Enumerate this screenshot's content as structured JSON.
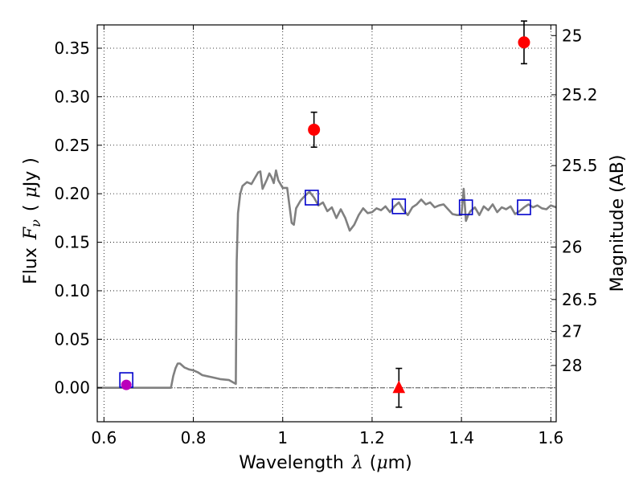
{
  "chart_data": {
    "type": "scatter",
    "xlim": [
      0.585,
      1.612
    ],
    "ylim": [
      -0.035,
      0.374
    ],
    "grid": true,
    "x_ticks": [
      0.6,
      0.8,
      1.0,
      1.2,
      1.4,
      1.6
    ],
    "x_tick_labels": [
      "0.6",
      "0.8",
      "1",
      "1.2",
      "1.4",
      "1.6"
    ],
    "y_ticks": [
      0.0,
      0.05,
      0.1,
      0.15,
      0.2,
      0.25,
      0.3,
      0.35
    ],
    "y_tick_labels": [
      "0.00",
      "0.05",
      "0.10",
      "0.15",
      "0.20",
      "0.25",
      "0.30",
      "0.35"
    ],
    "xlabel": {
      "text": "Wavelength",
      "symbol": "λ",
      "unit_open": "(",
      "unit_mu": "μ",
      "unit_rest": "m)"
    },
    "ylabel": {
      "text": "Flux",
      "symbol": "F",
      "subscript": "ν",
      "unit_open": "(",
      "unit_mu": "μ",
      "unit_rest": "Jy",
      "unit_close": ")"
    },
    "y2label": "Magnitude (AB)",
    "right_axis_ticks": [
      {
        "label": "25",
        "y_value": 0.363
      },
      {
        "label": "25.2",
        "y_value": 0.302
      },
      {
        "label": "25.5",
        "y_value": 0.229
      },
      {
        "label": "26",
        "y_value": 0.145
      },
      {
        "label": "26.5",
        "y_value": 0.091
      },
      {
        "label": "27",
        "y_value": 0.058
      },
      {
        "label": "28",
        "y_value": 0.023
      }
    ],
    "series": [
      {
        "kind": "model_sed_line",
        "color": "#808080",
        "x": [
          0.585,
          0.75,
          0.755,
          0.76,
          0.765,
          0.77,
          0.775,
          0.78,
          0.785,
          0.79,
          0.8,
          0.81,
          0.82,
          0.84,
          0.86,
          0.88,
          0.895,
          0.897,
          0.9,
          0.905,
          0.91,
          0.92,
          0.93,
          0.94,
          0.945,
          0.95,
          0.955,
          0.96,
          0.965,
          0.97,
          0.975,
          0.98,
          0.985,
          0.99,
          1.0,
          1.01,
          1.02,
          1.025,
          1.03,
          1.04,
          1.05,
          1.06,
          1.07,
          1.08,
          1.09,
          1.1,
          1.11,
          1.12,
          1.13,
          1.14,
          1.15,
          1.16,
          1.17,
          1.18,
          1.19,
          1.2,
          1.21,
          1.22,
          1.23,
          1.24,
          1.25,
          1.26,
          1.27,
          1.28,
          1.29,
          1.3,
          1.31,
          1.32,
          1.33,
          1.34,
          1.35,
          1.36,
          1.37,
          1.38,
          1.39,
          1.4,
          1.405,
          1.41,
          1.415,
          1.42,
          1.43,
          1.44,
          1.45,
          1.46,
          1.47,
          1.48,
          1.49,
          1.5,
          1.51,
          1.52,
          1.53,
          1.54,
          1.55,
          1.56,
          1.57,
          1.58,
          1.59,
          1.6,
          1.612
        ],
        "y": [
          0.0,
          0.0,
          0.012,
          0.02,
          0.025,
          0.025,
          0.023,
          0.021,
          0.02,
          0.019,
          0.018,
          0.016,
          0.013,
          0.011,
          0.009,
          0.008,
          0.004,
          0.13,
          0.18,
          0.2,
          0.208,
          0.212,
          0.21,
          0.218,
          0.222,
          0.223,
          0.205,
          0.21,
          0.215,
          0.221,
          0.217,
          0.211,
          0.224,
          0.214,
          0.206,
          0.206,
          0.17,
          0.168,
          0.185,
          0.193,
          0.198,
          0.202,
          0.196,
          0.188,
          0.191,
          0.182,
          0.186,
          0.175,
          0.184,
          0.175,
          0.162,
          0.168,
          0.178,
          0.185,
          0.18,
          0.181,
          0.185,
          0.183,
          0.187,
          0.181,
          0.187,
          0.191,
          0.183,
          0.178,
          0.186,
          0.189,
          0.194,
          0.189,
          0.191,
          0.186,
          0.188,
          0.189,
          0.184,
          0.179,
          0.178,
          0.178,
          0.205,
          0.172,
          0.178,
          0.182,
          0.186,
          0.178,
          0.187,
          0.183,
          0.189,
          0.181,
          0.186,
          0.184,
          0.187,
          0.179,
          0.182,
          0.186,
          0.189,
          0.186,
          0.188,
          0.185,
          0.184,
          0.188,
          0.186
        ]
      },
      {
        "kind": "model_band_flux",
        "marker": "open_square",
        "color": "#0000cc",
        "x": [
          0.65,
          1.065,
          1.26,
          1.41,
          1.54
        ],
        "y": [
          0.008,
          0.196,
          0.187,
          0.186,
          0.186
        ]
      },
      {
        "kind": "observed_detections",
        "marker": "filled_circle",
        "color": "#ff0000",
        "x": [
          1.07,
          1.54
        ],
        "y": [
          0.266,
          0.356
        ],
        "yerr": [
          0.018,
          0.022
        ]
      },
      {
        "kind": "observed_upper_limit",
        "marker": "filled_triangle",
        "color": "#ff0000",
        "x": [
          1.26
        ],
        "y": [
          0.0
        ],
        "yerr": [
          0.02
        ]
      },
      {
        "kind": "observed_low_snr",
        "marker": "filled_circle",
        "color": "#bb00bb",
        "x": [
          0.65
        ],
        "y": [
          0.003
        ],
        "yerr": [
          0.003
        ]
      }
    ],
    "zero_line": 0.0
  }
}
